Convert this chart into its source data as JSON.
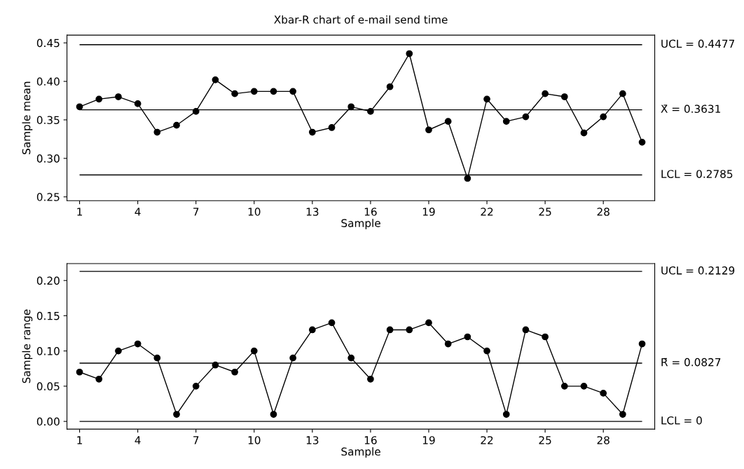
{
  "chart_data": [
    {
      "type": "line",
      "title": "Xbar-R chart of e-mail send time",
      "xlabel": "Sample",
      "ylabel": "Sample mean",
      "x": [
        1,
        2,
        3,
        4,
        5,
        6,
        7,
        8,
        9,
        10,
        11,
        12,
        13,
        14,
        15,
        16,
        17,
        18,
        19,
        20,
        21,
        22,
        23,
        24,
        25,
        26,
        27,
        28,
        29,
        30
      ],
      "series": [
        {
          "color": "#000000",
          "values": [
            0.367,
            0.377,
            0.38,
            0.371,
            0.334,
            0.343,
            0.361,
            0.402,
            0.384,
            0.387,
            0.387,
            0.387,
            0.334,
            0.34,
            0.367,
            0.361,
            0.393,
            0.436,
            0.337,
            0.348,
            0.274,
            0.377,
            0.348,
            0.354,
            0.384,
            0.38,
            0.333,
            0.354,
            0.384,
            0.321
          ]
        }
      ],
      "marker": "circle",
      "line_style": "solid",
      "grid": false,
      "legend": false,
      "xlim": [
        0.35,
        30.65
      ],
      "xticks": [
        1,
        4,
        7,
        10,
        13,
        16,
        19,
        22,
        25,
        28
      ],
      "ylim": [
        0.245,
        0.46
      ],
      "yticks": [
        {
          "value": 0.25,
          "label": "0.25"
        },
        {
          "value": 0.3,
          "label": "0.30"
        },
        {
          "value": 0.35,
          "label": "0.35"
        },
        {
          "value": 0.4,
          "label": "0.40"
        },
        {
          "value": 0.45,
          "label": "0.45"
        }
      ],
      "ref_lines": [
        {
          "axis": "y",
          "value": 0.4477,
          "label": "UCL = 0.4477",
          "color": "#000000"
        },
        {
          "axis": "y",
          "value": 0.3631,
          "label": "X̄ = 0.3631",
          "color": "#000000"
        },
        {
          "axis": "y",
          "value": 0.2785,
          "label": "LCL = 0.2785",
          "color": "#000000"
        }
      ]
    },
    {
      "type": "line",
      "xlabel": "Sample",
      "ylabel": "Sample range",
      "x": [
        1,
        2,
        3,
        4,
        5,
        6,
        7,
        8,
        9,
        10,
        11,
        12,
        13,
        14,
        15,
        16,
        17,
        18,
        19,
        20,
        21,
        22,
        23,
        24,
        25,
        26,
        27,
        28,
        29,
        30
      ],
      "series": [
        {
          "color": "#000000",
          "values": [
            0.07,
            0.06,
            0.1,
            0.11,
            0.09,
            0.01,
            0.05,
            0.08,
            0.07,
            0.1,
            0.01,
            0.09,
            0.13,
            0.14,
            0.09,
            0.06,
            0.13,
            0.13,
            0.14,
            0.11,
            0.12,
            0.1,
            0.01,
            0.13,
            0.12,
            0.05,
            0.05,
            0.04,
            0.01,
            0.11
          ]
        }
      ],
      "marker": "circle",
      "line_style": "solid",
      "grid": false,
      "legend": false,
      "xlim": [
        0.35,
        30.65
      ],
      "xticks": [
        1,
        4,
        7,
        10,
        13,
        16,
        19,
        22,
        25,
        28
      ],
      "ylim": [
        -0.011,
        0.224
      ],
      "yticks": [
        {
          "value": 0,
          "label": "0.00"
        },
        {
          "value": 0.05,
          "label": "0.05"
        },
        {
          "value": 0.1,
          "label": "0.10"
        },
        {
          "value": 0.15,
          "label": "0.15"
        },
        {
          "value": 0.2,
          "label": "0.20"
        }
      ],
      "ref_lines": [
        {
          "axis": "y",
          "value": 0.2129,
          "label": "UCL = 0.2129",
          "color": "#000000"
        },
        {
          "axis": "y",
          "value": 0.0827,
          "label": "R̄ = 0.0827",
          "color": "#000000"
        },
        {
          "axis": "y",
          "value": 0,
          "label": "LCL = 0",
          "color": "#000000"
        }
      ]
    }
  ]
}
